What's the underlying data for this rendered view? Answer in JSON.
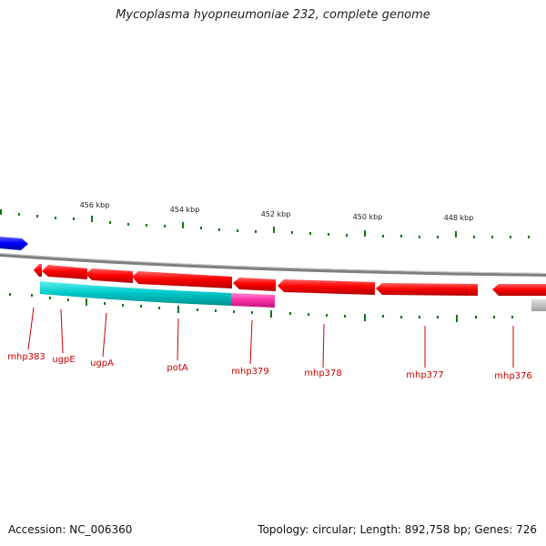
{
  "title": "Mycoplasma hyopneumoniae 232, complete genome",
  "accession_label": "Accession: NC_006360",
  "topology_label": "Topology: circular; Length: 892,758 bp; Genes: 726",
  "scale_labels": [
    "456 kbp",
    "454 kbp",
    "452 kbp",
    "450 kbp",
    "448 kbp"
  ],
  "gene_labels": [
    "mhp383",
    "ugpE",
    "ugpA",
    "potA",
    "mhp379",
    "mhp378",
    "mhp377",
    "mhp376"
  ],
  "colors": {
    "backbone": "#808080",
    "gene_cds": "#ff0000",
    "cog_cyan": "#00cccc",
    "cog_magenta": "#ff33aa",
    "gene_blue": "#0000ff",
    "gene_grey": "#b0b0b0",
    "tick": "#117711",
    "label": "#cc0000"
  }
}
